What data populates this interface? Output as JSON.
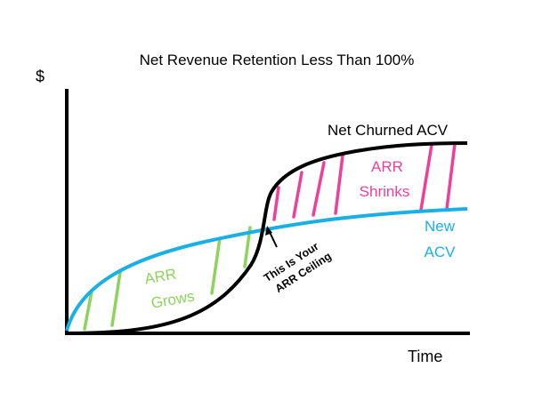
{
  "chart_data": {
    "type": "line",
    "title": "Net Revenue Retention Less Than 100%",
    "ylabel": "$",
    "xlabel": "Time",
    "grid": false,
    "series": [
      {
        "name": "Net Churned ACV",
        "color": "#000000"
      },
      {
        "name": "New ACV",
        "color": "#1ab0e6"
      }
    ],
    "annotations": {
      "grows": [
        "ARR",
        "Grows"
      ],
      "shrinks": [
        "ARR",
        "Shrinks"
      ],
      "ceiling": [
        "This Is Your",
        "ARR Ceiling"
      ],
      "new_acv": [
        "New",
        "ACV"
      ]
    },
    "colors": {
      "grows": "#8dd35c",
      "shrinks": "#ee3f9b",
      "axis": "#000000"
    }
  }
}
